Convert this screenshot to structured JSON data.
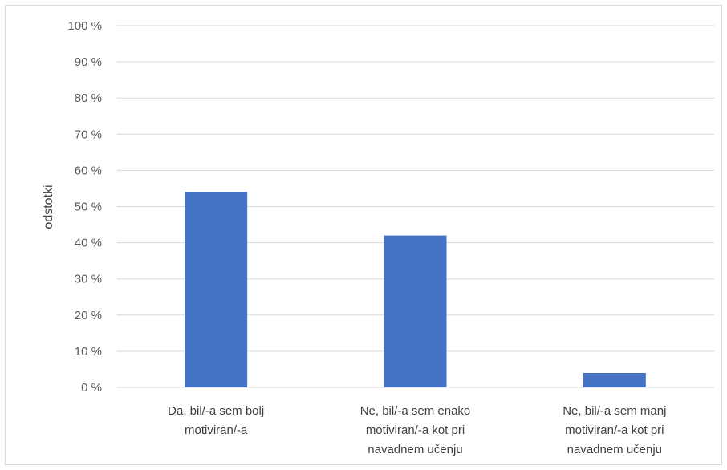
{
  "chart_data": {
    "type": "bar",
    "title": "",
    "xlabel": "",
    "ylabel": "odstotki",
    "ylim": [
      0,
      100
    ],
    "yticks": [
      "0 %",
      "10 %",
      "20 %",
      "30 %",
      "40 %",
      "50 %",
      "60 %",
      "70 %",
      "80 %",
      "90 %",
      "100 %"
    ],
    "categories": [
      [
        "Da, bil/-a sem bolj",
        "motiviran/-a"
      ],
      [
        "Ne, bil/-a sem enako",
        "motiviran/-a kot pri",
        "navadnem učenju"
      ],
      [
        "Ne, bil/-a sem manj",
        "motiviran/-a kot pri",
        "navadnem učenju"
      ]
    ],
    "values": [
      54,
      42,
      4
    ],
    "grid": true,
    "legend": "none",
    "bar_color": "#4472c4",
    "grid_color": "#d9d9d9"
  }
}
